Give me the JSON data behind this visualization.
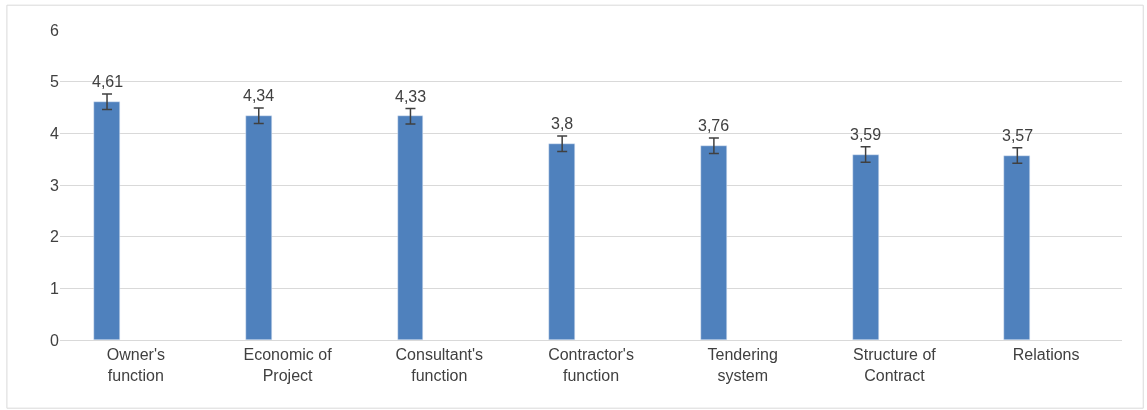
{
  "chart_data": {
    "type": "bar",
    "categories": [
      "Owner's function",
      "Economic of Project",
      "Consultant's function",
      "Contractor's function",
      "Tendering system",
      "Structure of Contract",
      "Relations"
    ],
    "values": [
      4.61,
      4.34,
      4.33,
      3.8,
      3.76,
      3.59,
      3.57
    ],
    "value_labels": [
      "4,61",
      "4,34",
      "4,33",
      "3,8",
      "3,76",
      "3,59",
      "3,57"
    ],
    "errors": [
      0.15,
      0.15,
      0.15,
      0.15,
      0.15,
      0.15,
      0.15
    ],
    "color": "#4f81bd",
    "ylim": [
      0,
      6
    ],
    "yticks": [
      0,
      1,
      2,
      3,
      4,
      5,
      6
    ],
    "grid": "y"
  }
}
